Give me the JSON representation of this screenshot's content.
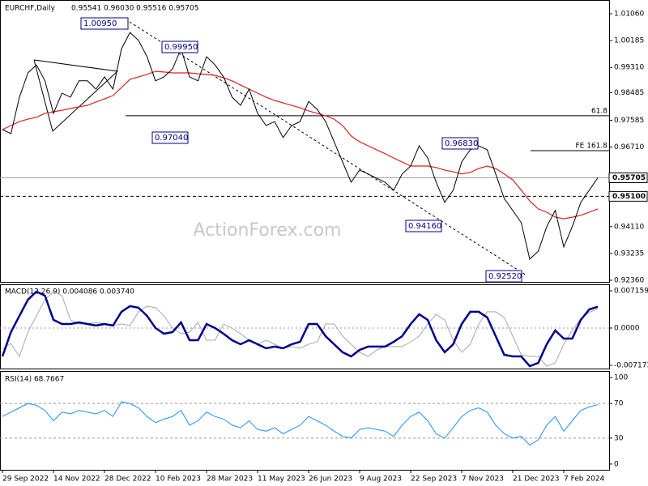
{
  "chart_data": {
    "type": "financial",
    "header": {
      "symbol": "EURCHF,Daily",
      "ohlc": "0.95541 0.96030 0.95516 0.95705"
    },
    "watermark": "ActionForex.com",
    "categories": [
      "29 Sep 2022",
      null,
      null,
      null,
      null,
      null,
      "14 Nov 2022",
      null,
      null,
      null,
      null,
      null,
      "28 Dec 2022",
      null,
      null,
      null,
      null,
      null,
      "10 Feb 2023",
      null,
      null,
      null,
      null,
      null,
      "28 Mar 2023",
      null,
      null,
      null,
      null,
      null,
      "11 May 2023",
      null,
      null,
      null,
      null,
      null,
      "26 Jun 2023",
      null,
      null,
      null,
      null,
      null,
      "9 Aug 2023",
      null,
      null,
      null,
      null,
      null,
      "22 Sep 2023",
      null,
      null,
      null,
      null,
      null,
      "7 Nov 2023",
      null,
      null,
      null,
      null,
      null,
      "21 Dec 2023",
      null,
      null,
      null,
      null,
      null,
      "7 Feb 2024",
      null,
      null,
      null,
      null
    ],
    "ylim": [
      0.92307,
      1.0151
    ],
    "yticks": [
      {
        "value": 1.0106,
        "label": "1.01060"
      },
      {
        "value": 1.00185,
        "label": "1.00185"
      },
      {
        "value": 0.9931,
        "label": "0.99310"
      },
      {
        "value": 0.98485,
        "label": "0.98485"
      },
      {
        "value": 0.97585,
        "label": "0.97585"
      },
      {
        "value": 0.9671,
        "label": "0.96710"
      },
      {
        "value": 0.9411,
        "label": "0.94110"
      },
      {
        "value": 0.93235,
        "label": "0.93235"
      },
      {
        "value": 0.9236,
        "label": "0.92360"
      }
    ],
    "series": [
      {
        "name": "EURCHF",
        "color": "#000000",
        "values": [
          0.9728,
          0.9715,
          0.9834,
          0.9913,
          0.9939,
          0.9887,
          0.9781,
          0.9847,
          0.9834,
          0.9887,
          0.9887,
          0.986,
          0.99,
          0.986,
          0.9992,
          1.0045,
          1.0019,
          0.9966,
          0.9887,
          0.99,
          0.9926,
          0.9992,
          0.99,
          0.9887,
          0.9966,
          0.9939,
          0.99,
          0.9834,
          0.9807,
          0.986,
          0.9781,
          0.9741,
          0.9754,
          0.9702,
          0.9741,
          0.9754,
          0.982,
          0.9794,
          0.9754,
          0.9688,
          0.9622,
          0.9556,
          0.9596,
          0.9583,
          0.9569,
          0.9556,
          0.953,
          0.9583,
          0.9609,
          0.9675,
          0.9635,
          0.9556,
          0.949,
          0.953,
          0.9622,
          0.9662,
          0.9675,
          0.9662,
          0.9583,
          0.9503,
          0.9464,
          0.9424,
          0.9305,
          0.9331,
          0.9411,
          0.9464,
          0.9345,
          0.9411,
          0.949,
          0.953,
          0.95705
        ]
      },
      {
        "name": "MA",
        "color": "#e02020",
        "values": [
          0.9728,
          0.9741,
          0.9754,
          0.9762,
          0.9768,
          0.9781,
          0.9786,
          0.9791,
          0.9797,
          0.9802,
          0.9807,
          0.9818,
          0.9828,
          0.9839,
          0.9865,
          0.9892,
          0.99,
          0.9908,
          0.9918,
          0.9916,
          0.9913,
          0.9913,
          0.9913,
          0.991,
          0.9908,
          0.9905,
          0.9897,
          0.9887,
          0.9873,
          0.986,
          0.9847,
          0.9834,
          0.9823,
          0.9815,
          0.9807,
          0.9799,
          0.9789,
          0.9781,
          0.9773,
          0.9762,
          0.9741,
          0.9707,
          0.9688,
          0.9675,
          0.9662,
          0.9649,
          0.9635,
          0.9622,
          0.9609,
          0.9609,
          0.9609,
          0.9604,
          0.9596,
          0.959,
          0.9583,
          0.9588,
          0.9601,
          0.9609,
          0.9601,
          0.9583,
          0.9564,
          0.953,
          0.9495,
          0.9469,
          0.9458,
          0.9442,
          0.9437,
          0.9442,
          0.9448,
          0.9458,
          0.9469
        ]
      }
    ],
    "current": 0.95705,
    "support": {
      "value": 0.951,
      "label": "0.95100"
    },
    "pivots": [
      {
        "value": 1.0095,
        "label": "1.00950"
      },
      {
        "value": 0.9995,
        "label": "0.99950"
      },
      {
        "value": 0.9704,
        "label": "0.97040"
      },
      {
        "value": 0.9416,
        "label": "0.94160"
      },
      {
        "value": 0.9683,
        "label": "0.96830"
      },
      {
        "value": 0.9252,
        "label": "0.92520"
      }
    ],
    "levels": [
      {
        "label": "61.8",
        "value": 0.9773
      },
      {
        "label": "FE 161.8",
        "value": 0.9659
      }
    ],
    "macd": {
      "title": "MACD(12,26,9) 0.004086 0.003740",
      "ylim": [
        -0.00795,
        0.00825
      ],
      "yticks": [
        0.007159,
        {
          "value": 0,
          "label": "0.0000"
        },
        -0.007173
      ],
      "series": [
        {
          "name": "MACD",
          "color": "#00008b",
          "values": [
            -0.00545,
            -0.00078,
            0.00234,
            0.00545,
            0.00701,
            0.00623,
            0.00156,
            0.00078,
            0.00078,
            0.00109,
            0.00078,
            0.00047,
            0.00078,
            0.00047,
            0.00312,
            0.00421,
            0.0039,
            0.00234,
            0,
            -0.00109,
            -0.00078,
            0.00109,
            -0.00234,
            -0.00234,
            0.00078,
            0,
            -0.00109,
            -0.00234,
            -0.00312,
            -0.00234,
            -0.00312,
            -0.0039,
            -0.00358,
            -0.0039,
            -0.00312,
            -0.00265,
            0.00078,
            0.00078,
            -0.00156,
            -0.00312,
            -0.00467,
            -0.00545,
            -0.00421,
            -0.00358,
            -0.00358,
            -0.00358,
            -0.00265,
            -0.00156,
            0.00078,
            0.00265,
            0.00156,
            -0.00234,
            -0.00467,
            -0.00312,
            0.00078,
            0.00312,
            0.00312,
            0.00203,
            -0.00156,
            -0.00514,
            -0.00545,
            -0.00545,
            -0.00732,
            -0.0067,
            -0.00312,
            -0.00047,
            -0.00203,
            -0.00203,
            0.00156,
            0.00358,
            0.004086
          ]
        },
        {
          "name": "Signal",
          "color": "#a8a8a8",
          "values": [
            -0.004,
            -0.003,
            -0.00545,
            -0.00078,
            0.00234,
            0.00545,
            0.00701,
            0.00623,
            0.00156,
            0.00078,
            0.00078,
            0.00109,
            0.00078,
            0.00047,
            0.00078,
            0.00047,
            0.00312,
            0.00421,
            0.0039,
            0.00234,
            0,
            -0.00109,
            -0.00078,
            0.00109,
            -0.00234,
            -0.00234,
            0.00078,
            0,
            -0.00109,
            -0.00234,
            -0.00312,
            -0.00234,
            -0.00312,
            -0.0039,
            -0.00358,
            -0.0039,
            -0.00312,
            -0.00265,
            0.00078,
            0.00078,
            -0.00156,
            -0.00312,
            -0.00467,
            -0.00545,
            -0.00421,
            -0.00358,
            -0.00358,
            -0.00358,
            -0.00265,
            -0.00156,
            0.00078,
            0.00265,
            0.00156,
            -0.00234,
            -0.00467,
            -0.00312,
            0.00078,
            0.00312,
            0.00312,
            0.00203,
            -0.00156,
            -0.00514,
            -0.00545,
            -0.00545,
            -0.00732,
            -0.0067,
            -0.00312,
            -0.00047,
            0.0018,
            0.003,
            0.00374
          ]
        }
      ]
    },
    "rsi": {
      "title": "RSI(14) 68.7667",
      "ylim": [
        -7.6,
        106.7
      ],
      "yticks": [
        100,
        70,
        30,
        0
      ],
      "levels": [
        70,
        30
      ],
      "color": "#1e90ff",
      "values": [
        55,
        60,
        65,
        70,
        68,
        62,
        50,
        60,
        58,
        62,
        60,
        58,
        62,
        55,
        72,
        70,
        65,
        55,
        48,
        52,
        55,
        62,
        45,
        50,
        60,
        55,
        52,
        45,
        42,
        50,
        40,
        38,
        42,
        35,
        40,
        45,
        55,
        50,
        45,
        38,
        32,
        30,
        40,
        42,
        40,
        38,
        32,
        45,
        55,
        60,
        50,
        35,
        30,
        42,
        55,
        62,
        65,
        60,
        45,
        35,
        30,
        32,
        22,
        28,
        45,
        55,
        38,
        50,
        62,
        66,
        68.7667
      ]
    }
  }
}
